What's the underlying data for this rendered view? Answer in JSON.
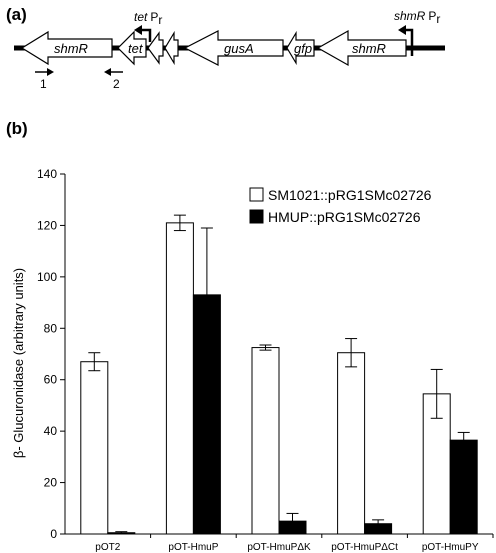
{
  "panel_a": {
    "label": "(a)",
    "genes": [
      "shmR",
      "tet",
      "gusA",
      "gfp",
      "shmR"
    ],
    "promoters": [
      {
        "gene": "tet",
        "suffix": "P",
        "sub": "r"
      },
      {
        "gene": "shmR",
        "suffix": "P",
        "sub": "r"
      }
    ],
    "primers": [
      "1",
      "2"
    ]
  },
  "panel_b": {
    "label": "(b)"
  },
  "chart_data": {
    "type": "bar",
    "title": "",
    "ylabel": "β- Glucuronidase (arbitrary units)",
    "xlabel": "",
    "ylim": [
      0,
      140
    ],
    "yticks": [
      0,
      20,
      40,
      60,
      80,
      100,
      120,
      140
    ],
    "categories": [
      "pOT2",
      "pOT-HmuP",
      "pOT-HmuPΔK",
      "pOT-HmuPΔCt",
      "pOT-HmuPY"
    ],
    "series": [
      {
        "name": "SM1021::pRG1SMc02726",
        "color": "#ffffff",
        "values": [
          67,
          121,
          72.5,
          70.5,
          54.5
        ],
        "errors": [
          3.5,
          3,
          1,
          5.5,
          9.5
        ]
      },
      {
        "name": "HMUP::pRG1SMc02726",
        "color": "#000000",
        "values": [
          0.5,
          93,
          5,
          4,
          36.5
        ],
        "errors": [
          0.4,
          26,
          3,
          1.5,
          3
        ]
      }
    ],
    "legend_position": "top-right",
    "grid": false
  }
}
